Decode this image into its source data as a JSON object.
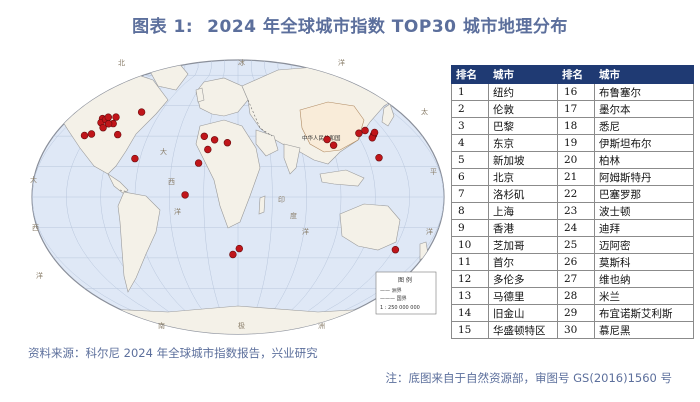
{
  "header": {
    "figure_label": "图表 1:",
    "title": "2024 年全球城市指数 TOP30 城市地理分布"
  },
  "map": {
    "country_label": "中华人民共和国",
    "legend_title": "图 例",
    "legend_items": [
      "—— 洲界",
      "——— 国界"
    ],
    "scale": "1 : 250 000 000",
    "ocean_labels": [
      "北",
      "冰",
      "洋",
      "太",
      "平",
      "洋",
      "大",
      "西",
      "洋",
      "大",
      "西",
      "洋",
      "印",
      "度",
      "洋",
      "南",
      "极",
      "洲"
    ],
    "cities": [
      {
        "name": "纽约",
        "lon": -74.0,
        "lat": 40.7
      },
      {
        "name": "伦敦",
        "lon": -0.1,
        "lat": 51.5
      },
      {
        "name": "巴黎",
        "lon": 2.35,
        "lat": 48.9
      },
      {
        "name": "东京",
        "lon": 139.7,
        "lat": 35.7
      },
      {
        "name": "新加坡",
        "lon": 103.8,
        "lat": 1.35
      },
      {
        "name": "北京",
        "lon": 116.4,
        "lat": 39.9
      },
      {
        "name": "洛杉矶",
        "lon": -118.2,
        "lat": 34.05
      },
      {
        "name": "上海",
        "lon": 121.5,
        "lat": 31.2
      },
      {
        "name": "香港",
        "lon": 114.2,
        "lat": 22.3
      },
      {
        "name": "芝加哥",
        "lon": -87.6,
        "lat": 41.9
      },
      {
        "name": "首尔",
        "lon": 127.0,
        "lat": 37.6
      },
      {
        "name": "多伦多",
        "lon": -79.4,
        "lat": 43.7
      },
      {
        "name": "马德里",
        "lon": -3.7,
        "lat": 40.4
      },
      {
        "name": "旧金山",
        "lon": -122.4,
        "lat": 37.8
      },
      {
        "name": "华盛顿特区",
        "lon": -77.0,
        "lat": 38.9
      },
      {
        "name": "布鲁塞尔",
        "lon": 4.35,
        "lat": 50.85
      },
      {
        "name": "墨尔本",
        "lon": 144.96,
        "lat": -37.8
      },
      {
        "name": "悉尼",
        "lon": 151.2,
        "lat": -33.9
      },
      {
        "name": "伊斯坦布尔",
        "lon": 29.0,
        "lat": 41.0
      },
      {
        "name": "柏林",
        "lon": 13.4,
        "lat": 52.5
      },
      {
        "name": "阿姆斯特丹",
        "lon": 4.9,
        "lat": 52.4
      },
      {
        "name": "巴塞罗那",
        "lon": 2.2,
        "lat": 41.4
      },
      {
        "name": "波士顿",
        "lon": -71.1,
        "lat": 42.4
      },
      {
        "name": "迪拜",
        "lon": 55.3,
        "lat": 25.2
      },
      {
        "name": "迈阿密",
        "lon": -80.2,
        "lat": 25.8
      },
      {
        "name": "莫斯科",
        "lon": 37.6,
        "lat": 55.8
      },
      {
        "name": "维也纳",
        "lon": 16.4,
        "lat": 48.2
      },
      {
        "name": "米兰",
        "lon": 9.2,
        "lat": 45.5
      },
      {
        "name": "布宜诺斯艾利斯",
        "lon": -58.4,
        "lat": -34.6
      },
      {
        "name": "慕尼黑",
        "lon": 11.6,
        "lat": 48.1
      }
    ]
  },
  "table": {
    "headers": [
      "排名",
      "城市",
      "排名",
      "城市"
    ],
    "rows": [
      [
        "1",
        "纽约",
        "16",
        "布鲁塞尔"
      ],
      [
        "2",
        "伦敦",
        "17",
        "墨尔本"
      ],
      [
        "3",
        "巴黎",
        "18",
        "悉尼"
      ],
      [
        "4",
        "东京",
        "19",
        "伊斯坦布尔"
      ],
      [
        "5",
        "新加坡",
        "20",
        "柏林"
      ],
      [
        "6",
        "北京",
        "21",
        "阿姆斯特丹"
      ],
      [
        "7",
        "洛杉矶",
        "22",
        "巴塞罗那"
      ],
      [
        "8",
        "上海",
        "23",
        "波士顿"
      ],
      [
        "9",
        "香港",
        "24",
        "迪拜"
      ],
      [
        "10",
        "芝加哥",
        "25",
        "迈阿密"
      ],
      [
        "11",
        "首尔",
        "26",
        "莫斯科"
      ],
      [
        "12",
        "多伦多",
        "27",
        "维也纳"
      ],
      [
        "13",
        "马德里",
        "28",
        "米兰"
      ],
      [
        "14",
        "旧金山",
        "29",
        "布宜诺斯艾利斯"
      ],
      [
        "15",
        "华盛顿特区",
        "30",
        "慕尼黑"
      ]
    ]
  },
  "footer": {
    "source": "资料来源：科尔尼 2024 年全球城市指数报告，兴业研究",
    "note": "注：底图来自于自然资源部，审图号 GS(2016)1560 号"
  },
  "colors": {
    "title": "#5c6f9c",
    "header_bg": "#1f3a73",
    "land": "#f4f1e8",
    "ocean": "#dfe8f6",
    "marker": "#c0151a"
  }
}
